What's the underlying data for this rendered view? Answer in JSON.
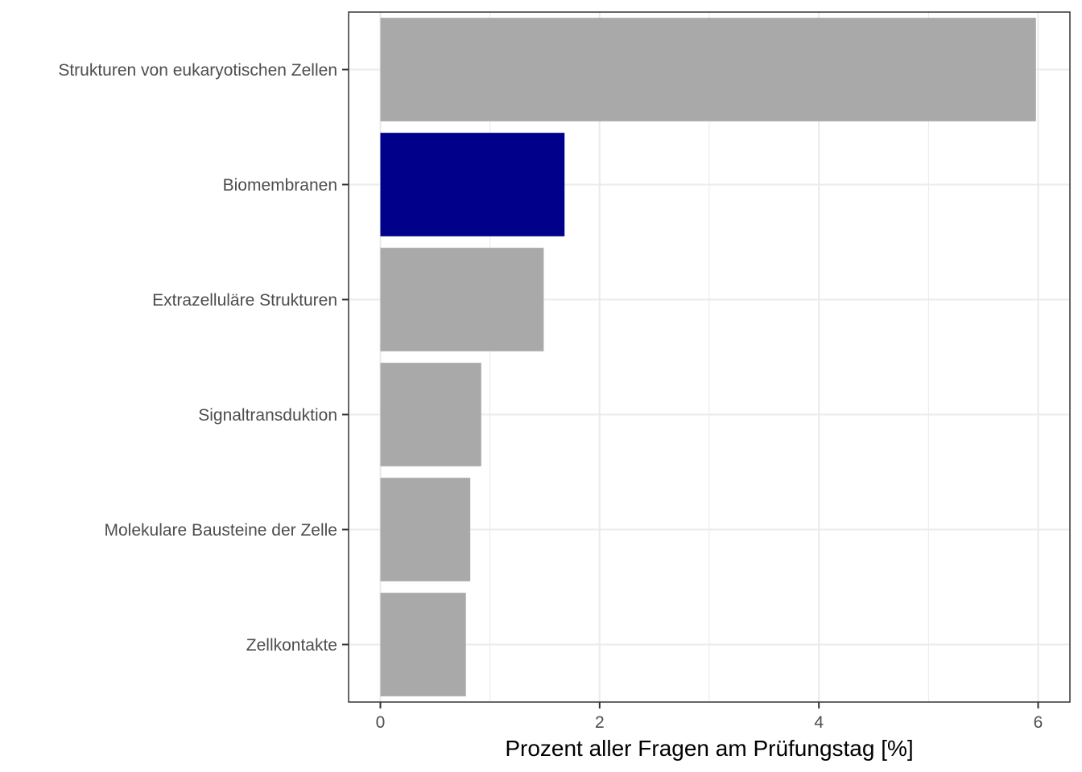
{
  "chart_data": {
    "type": "bar",
    "orientation": "horizontal",
    "categories": [
      "Strukturen von eukaryotischen Zellen",
      "Biomembranen",
      "Extrazelluläre Strukturen",
      "Signaltransduktion",
      "Molekulare Bausteine der Zelle",
      "Zellkontakte"
    ],
    "values": [
      5.98,
      1.68,
      1.49,
      0.92,
      0.82,
      0.78
    ],
    "highlight_index": 1,
    "colors": {
      "default": "#a9a9a9",
      "highlight": "#00008b",
      "panel_border": "#333333",
      "grid": "#ebebeb"
    },
    "xlabel": "Prozent aller Fragen am Prüfungstag [%]",
    "ylabel": "",
    "title": "",
    "xlim": [
      -0.29,
      6.29
    ],
    "xticks": [
      0,
      2,
      4,
      6
    ],
    "xtick_labels": [
      "0",
      "2",
      "4",
      "6"
    ],
    "grid": true,
    "legend": "none"
  }
}
